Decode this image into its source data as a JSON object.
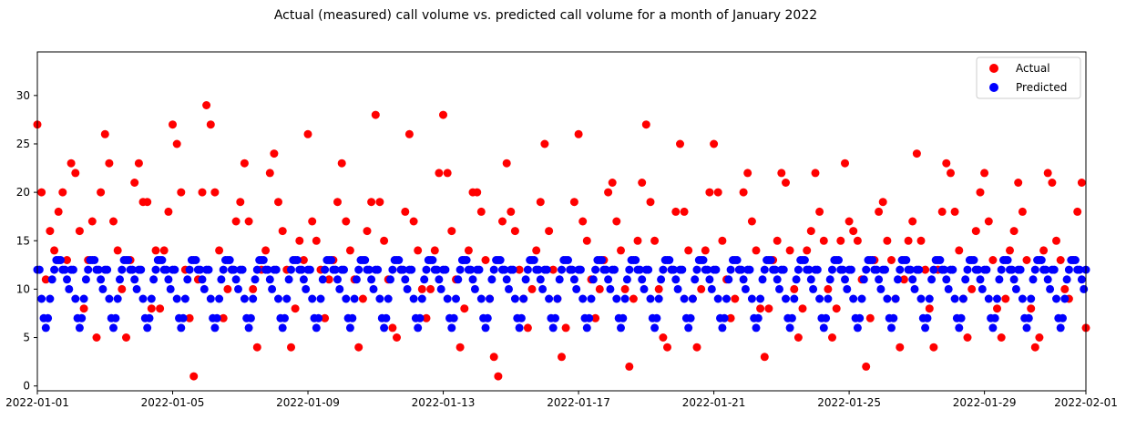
{
  "chart_data": {
    "type": "scatter",
    "title": "Actual (measured) call volume vs. predicted call volume for a month of January 2022",
    "xlabel": "",
    "ylabel": "",
    "x_range": [
      "2022-01-01",
      "2022-02-01"
    ],
    "ylim": [
      -0.5,
      34.5
    ],
    "x_ticks": [
      "2022-01-01",
      "2022-01-05",
      "2022-01-09",
      "2022-01-13",
      "2022-01-17",
      "2022-01-21",
      "2022-01-25",
      "2022-01-29",
      "2022-02-01"
    ],
    "y_ticks": [
      0,
      5,
      10,
      15,
      20,
      25,
      30
    ],
    "grid": false,
    "legend_position": "top-right",
    "series": [
      {
        "name": "Actual",
        "color": "#ff0000",
        "points": [
          [
            "2022-01-01 00:00",
            27
          ],
          [
            "2022-01-01 03:00",
            20
          ],
          [
            "2022-01-01 06:00",
            11
          ],
          [
            "2022-01-01 09:00",
            16
          ],
          [
            "2022-01-01 12:00",
            14
          ],
          [
            "2022-01-01 15:00",
            18
          ],
          [
            "2022-01-01 18:00",
            20
          ],
          [
            "2022-01-01 21:00",
            13
          ],
          [
            "2022-01-02 00:00",
            23
          ],
          [
            "2022-01-02 03:00",
            22
          ],
          [
            "2022-01-02 06:00",
            16
          ],
          [
            "2022-01-02 09:00",
            8
          ],
          [
            "2022-01-02 12:00",
            13
          ],
          [
            "2022-01-02 15:00",
            17
          ],
          [
            "2022-01-02 18:00",
            5
          ],
          [
            "2022-01-02 21:00",
            20
          ],
          [
            "2022-01-03 00:00",
            26
          ],
          [
            "2022-01-03 03:00",
            23
          ],
          [
            "2022-01-03 06:00",
            17
          ],
          [
            "2022-01-03 09:00",
            14
          ],
          [
            "2022-01-03 12:00",
            10
          ],
          [
            "2022-01-03 15:00",
            5
          ],
          [
            "2022-01-03 18:00",
            13
          ],
          [
            "2022-01-03 21:00",
            21
          ],
          [
            "2022-01-04 00:00",
            23
          ],
          [
            "2022-01-04 03:00",
            19
          ],
          [
            "2022-01-04 06:00",
            19
          ],
          [
            "2022-01-04 09:00",
            8
          ],
          [
            "2022-01-04 12:00",
            14
          ],
          [
            "2022-01-04 15:00",
            8
          ],
          [
            "2022-01-04 18:00",
            14
          ],
          [
            "2022-01-04 21:00",
            18
          ],
          [
            "2022-01-05 00:00",
            27
          ],
          [
            "2022-01-05 03:00",
            25
          ],
          [
            "2022-01-05 06:00",
            20
          ],
          [
            "2022-01-05 09:00",
            12
          ],
          [
            "2022-01-05 12:00",
            7
          ],
          [
            "2022-01-05 15:00",
            1
          ],
          [
            "2022-01-05 18:00",
            11
          ],
          [
            "2022-01-05 21:00",
            20
          ],
          [
            "2022-01-06 00:00",
            29
          ],
          [
            "2022-01-06 03:00",
            27
          ],
          [
            "2022-01-06 06:00",
            20
          ],
          [
            "2022-01-06 09:00",
            14
          ],
          [
            "2022-01-06 12:00",
            7
          ],
          [
            "2022-01-06 15:00",
            10
          ],
          [
            "2022-01-06 18:00",
            12
          ],
          [
            "2022-01-06 21:00",
            17
          ],
          [
            "2022-01-07 00:00",
            19
          ],
          [
            "2022-01-07 03:00",
            23
          ],
          [
            "2022-01-07 06:00",
            17
          ],
          [
            "2022-01-07 09:00",
            10
          ],
          [
            "2022-01-07 12:00",
            4
          ],
          [
            "2022-01-07 15:00",
            12
          ],
          [
            "2022-01-07 18:00",
            14
          ],
          [
            "2022-01-07 21:00",
            22
          ],
          [
            "2022-01-08 00:00",
            24
          ],
          [
            "2022-01-08 03:00",
            19
          ],
          [
            "2022-01-08 06:00",
            16
          ],
          [
            "2022-01-08 09:00",
            12
          ],
          [
            "2022-01-08 12:00",
            4
          ],
          [
            "2022-01-08 15:00",
            8
          ],
          [
            "2022-01-08 18:00",
            15
          ],
          [
            "2022-01-08 21:00",
            13
          ],
          [
            "2022-01-09 00:00",
            26
          ],
          [
            "2022-01-09 03:00",
            17
          ],
          [
            "2022-01-09 06:00",
            15
          ],
          [
            "2022-01-09 09:00",
            12
          ],
          [
            "2022-01-09 12:00",
            7
          ],
          [
            "2022-01-09 15:00",
            11
          ],
          [
            "2022-01-09 18:00",
            13
          ],
          [
            "2022-01-09 21:00",
            19
          ],
          [
            "2022-01-10 00:00",
            23
          ],
          [
            "2022-01-10 03:00",
            17
          ],
          [
            "2022-01-10 06:00",
            14
          ],
          [
            "2022-01-10 09:00",
            11
          ],
          [
            "2022-01-10 12:00",
            4
          ],
          [
            "2022-01-10 15:00",
            9
          ],
          [
            "2022-01-10 18:00",
            16
          ],
          [
            "2022-01-10 21:00",
            19
          ],
          [
            "2022-01-11 00:00",
            28
          ],
          [
            "2022-01-11 03:00",
            19
          ],
          [
            "2022-01-11 06:00",
            15
          ],
          [
            "2022-01-11 09:00",
            11
          ],
          [
            "2022-01-11 12:00",
            6
          ],
          [
            "2022-01-11 15:00",
            5
          ],
          [
            "2022-01-11 18:00",
            12
          ],
          [
            "2022-01-11 21:00",
            18
          ],
          [
            "2022-01-12 00:00",
            26
          ],
          [
            "2022-01-12 03:00",
            17
          ],
          [
            "2022-01-12 06:00",
            14
          ],
          [
            "2022-01-12 09:00",
            10
          ],
          [
            "2022-01-12 12:00",
            7
          ],
          [
            "2022-01-12 15:00",
            10
          ],
          [
            "2022-01-12 18:00",
            14
          ],
          [
            "2022-01-12 21:00",
            22
          ],
          [
            "2022-01-13 00:00",
            28
          ],
          [
            "2022-01-13 03:00",
            22
          ],
          [
            "2022-01-13 06:00",
            16
          ],
          [
            "2022-01-13 09:00",
            11
          ],
          [
            "2022-01-13 12:00",
            4
          ],
          [
            "2022-01-13 15:00",
            8
          ],
          [
            "2022-01-13 18:00",
            14
          ],
          [
            "2022-01-13 21:00",
            20
          ],
          [
            "2022-01-14 00:00",
            20
          ],
          [
            "2022-01-14 03:00",
            18
          ],
          [
            "2022-01-14 06:00",
            13
          ],
          [
            "2022-01-14 09:00",
            9
          ],
          [
            "2022-01-14 12:00",
            3
          ],
          [
            "2022-01-14 15:00",
            1
          ],
          [
            "2022-01-14 18:00",
            17
          ],
          [
            "2022-01-14 21:00",
            23
          ],
          [
            "2022-01-15 00:00",
            18
          ],
          [
            "2022-01-15 03:00",
            16
          ],
          [
            "2022-01-15 06:00",
            12
          ],
          [
            "2022-01-15 09:00",
            9
          ],
          [
            "2022-01-15 12:00",
            6
          ],
          [
            "2022-01-15 15:00",
            10
          ],
          [
            "2022-01-15 18:00",
            14
          ],
          [
            "2022-01-15 21:00",
            19
          ],
          [
            "2022-01-16 00:00",
            25
          ],
          [
            "2022-01-16 03:00",
            16
          ],
          [
            "2022-01-16 06:00",
            12
          ],
          [
            "2022-01-16 09:00",
            9
          ],
          [
            "2022-01-16 12:00",
            3
          ],
          [
            "2022-01-16 15:00",
            6
          ],
          [
            "2022-01-16 18:00",
            12
          ],
          [
            "2022-01-16 21:00",
            19
          ],
          [
            "2022-01-17 00:00",
            26
          ],
          [
            "2022-01-17 03:00",
            17
          ],
          [
            "2022-01-17 06:00",
            15
          ],
          [
            "2022-01-17 09:00",
            11
          ],
          [
            "2022-01-17 12:00",
            7
          ],
          [
            "2022-01-17 15:00",
            10
          ],
          [
            "2022-01-17 18:00",
            13
          ],
          [
            "2022-01-17 21:00",
            20
          ],
          [
            "2022-01-18 00:00",
            21
          ],
          [
            "2022-01-18 03:00",
            17
          ],
          [
            "2022-01-18 06:00",
            14
          ],
          [
            "2022-01-18 09:00",
            10
          ],
          [
            "2022-01-18 12:00",
            2
          ],
          [
            "2022-01-18 15:00",
            9
          ],
          [
            "2022-01-18 18:00",
            15
          ],
          [
            "2022-01-18 21:00",
            21
          ],
          [
            "2022-01-19 00:00",
            27
          ],
          [
            "2022-01-19 03:00",
            19
          ],
          [
            "2022-01-19 06:00",
            15
          ],
          [
            "2022-01-19 09:00",
            10
          ],
          [
            "2022-01-19 12:00",
            5
          ],
          [
            "2022-01-19 15:00",
            4
          ],
          [
            "2022-01-19 18:00",
            12
          ],
          [
            "2022-01-19 21:00",
            18
          ],
          [
            "2022-01-20 00:00",
            25
          ],
          [
            "2022-01-20 03:00",
            18
          ],
          [
            "2022-01-20 06:00",
            14
          ],
          [
            "2022-01-20 09:00",
            9
          ],
          [
            "2022-01-20 12:00",
            4
          ],
          [
            "2022-01-20 15:00",
            10
          ],
          [
            "2022-01-20 18:00",
            14
          ],
          [
            "2022-01-20 21:00",
            20
          ],
          [
            "2022-01-21 00:00",
            25
          ],
          [
            "2022-01-21 03:00",
            20
          ],
          [
            "2022-01-21 06:00",
            15
          ],
          [
            "2022-01-21 09:00",
            11
          ],
          [
            "2022-01-21 12:00",
            7
          ],
          [
            "2022-01-21 15:00",
            9
          ],
          [
            "2022-01-21 18:00",
            12
          ],
          [
            "2022-01-21 21:00",
            20
          ],
          [
            "2022-01-22 00:00",
            22
          ],
          [
            "2022-01-22 03:00",
            17
          ],
          [
            "2022-01-22 06:00",
            14
          ],
          [
            "2022-01-22 09:00",
            8
          ],
          [
            "2022-01-22 12:00",
            3
          ],
          [
            "2022-01-22 15:00",
            8
          ],
          [
            "2022-01-22 18:00",
            13
          ],
          [
            "2022-01-22 21:00",
            15
          ],
          [
            "2022-01-23 00:00",
            22
          ],
          [
            "2022-01-23 03:00",
            21
          ],
          [
            "2022-01-23 06:00",
            14
          ],
          [
            "2022-01-23 09:00",
            10
          ],
          [
            "2022-01-23 12:00",
            5
          ],
          [
            "2022-01-23 15:00",
            8
          ],
          [
            "2022-01-23 18:00",
            14
          ],
          [
            "2022-01-23 21:00",
            16
          ],
          [
            "2022-01-24 00:00",
            22
          ],
          [
            "2022-01-24 03:00",
            18
          ],
          [
            "2022-01-24 06:00",
            15
          ],
          [
            "2022-01-24 09:00",
            10
          ],
          [
            "2022-01-24 12:00",
            5
          ],
          [
            "2022-01-24 15:00",
            8
          ],
          [
            "2022-01-24 18:00",
            15
          ],
          [
            "2022-01-24 21:00",
            23
          ],
          [
            "2022-01-25 00:00",
            17
          ],
          [
            "2022-01-25 03:00",
            16
          ],
          [
            "2022-01-25 06:00",
            15
          ],
          [
            "2022-01-25 09:00",
            11
          ],
          [
            "2022-01-25 12:00",
            2
          ],
          [
            "2022-01-25 15:00",
            7
          ],
          [
            "2022-01-25 18:00",
            13
          ],
          [
            "2022-01-25 21:00",
            18
          ],
          [
            "2022-01-26 00:00",
            19
          ],
          [
            "2022-01-26 03:00",
            15
          ],
          [
            "2022-01-26 06:00",
            13
          ],
          [
            "2022-01-26 09:00",
            9
          ],
          [
            "2022-01-26 12:00",
            4
          ],
          [
            "2022-01-26 15:00",
            11
          ],
          [
            "2022-01-26 18:00",
            15
          ],
          [
            "2022-01-26 21:00",
            17
          ],
          [
            "2022-01-27 00:00",
            24
          ],
          [
            "2022-01-27 03:00",
            15
          ],
          [
            "2022-01-27 06:00",
            12
          ],
          [
            "2022-01-27 09:00",
            8
          ],
          [
            "2022-01-27 12:00",
            4
          ],
          [
            "2022-01-27 15:00",
            12
          ],
          [
            "2022-01-27 18:00",
            18
          ],
          [
            "2022-01-27 21:00",
            23
          ],
          [
            "2022-01-28 00:00",
            22
          ],
          [
            "2022-01-28 03:00",
            18
          ],
          [
            "2022-01-28 06:00",
            14
          ],
          [
            "2022-01-28 09:00",
            9
          ],
          [
            "2022-01-28 12:00",
            5
          ],
          [
            "2022-01-28 15:00",
            10
          ],
          [
            "2022-01-28 18:00",
            16
          ],
          [
            "2022-01-28 21:00",
            20
          ],
          [
            "2022-01-29 00:00",
            22
          ],
          [
            "2022-01-29 03:00",
            17
          ],
          [
            "2022-01-29 06:00",
            13
          ],
          [
            "2022-01-29 09:00",
            8
          ],
          [
            "2022-01-29 12:00",
            5
          ],
          [
            "2022-01-29 15:00",
            9
          ],
          [
            "2022-01-29 18:00",
            14
          ],
          [
            "2022-01-29 21:00",
            16
          ],
          [
            "2022-01-30 00:00",
            21
          ],
          [
            "2022-01-30 03:00",
            18
          ],
          [
            "2022-01-30 06:00",
            13
          ],
          [
            "2022-01-30 09:00",
            8
          ],
          [
            "2022-01-30 12:00",
            4
          ],
          [
            "2022-01-30 15:00",
            5
          ],
          [
            "2022-01-30 18:00",
            14
          ],
          [
            "2022-01-30 21:00",
            22
          ],
          [
            "2022-01-31 00:00",
            21
          ],
          [
            "2022-01-31 03:00",
            15
          ],
          [
            "2022-01-31 06:00",
            13
          ],
          [
            "2022-01-31 09:00",
            10
          ],
          [
            "2022-01-31 12:00",
            9
          ],
          [
            "2022-01-31 15:00",
            13
          ],
          [
            "2022-01-31 18:00",
            18
          ],
          [
            "2022-01-31 21:00",
            21
          ],
          [
            "2022-02-01 00:00",
            6
          ]
        ]
      },
      {
        "name": "Predicted",
        "color": "#0000ff",
        "profile": [
          12,
          12,
          9,
          7,
          6,
          7,
          9,
          11,
          12,
          13,
          13,
          13,
          12,
          12,
          11,
          10
        ],
        "points": []
      }
    ]
  }
}
